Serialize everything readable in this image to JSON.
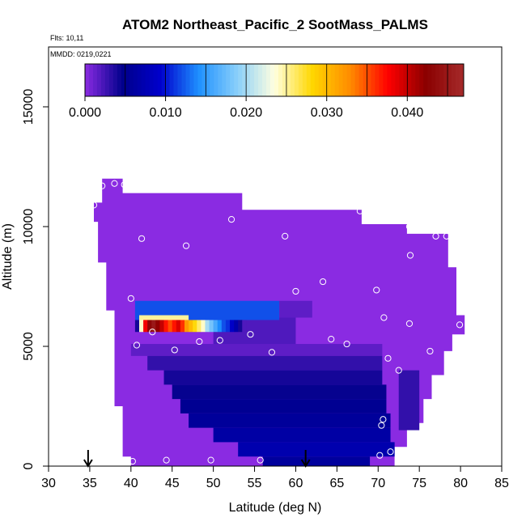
{
  "header": {
    "title": "ATOM2 Northeast_Pacific_2 SootMass_PALMS",
    "flights": "Flts: 10,11",
    "dates": "MMDD: 0219,0221"
  },
  "colors": {
    "background_fill": "#8a2be2",
    "colorbar": [
      "#8a2be2",
      "#00008b",
      "#0000cd",
      "#1e90ff",
      "#87cefa",
      "#ffffe0",
      "#ffd700",
      "#ff8c00",
      "#ff0000",
      "#8b0000",
      "#a52a2a"
    ]
  },
  "chart_data": {
    "type": "heatmap",
    "title": "ATOM2 Northeast_Pacific_2 SootMass_PALMS",
    "xlabel": "Latitude (deg N)",
    "ylabel": "Altitude (m)",
    "xlim": [
      30,
      85
    ],
    "ylim": [
      0,
      17500
    ],
    "xticks": [
      "30",
      "35",
      "40",
      "45",
      "50",
      "55",
      "60",
      "65",
      "70",
      "75",
      "80",
      "85"
    ],
    "yticks": [
      "0",
      "5000",
      "10000",
      "15000"
    ],
    "colorbar": {
      "range": [
        0,
        0.047
      ],
      "ticks": [
        "0.000",
        "0.010",
        "0.020",
        "0.030",
        "0.040"
      ],
      "tick_values": [
        0,
        0.01,
        0.02,
        0.03,
        0.04
      ],
      "boundaries": [
        0,
        0.005,
        0.01,
        0.015,
        0.02,
        0.025,
        0.03,
        0.035,
        0.04,
        0.045,
        0.047
      ]
    },
    "domain_outline": [
      [
        36.5,
        12000
      ],
      [
        39,
        12000
      ],
      [
        39,
        11400
      ],
      [
        53.5,
        11400
      ],
      [
        53.5,
        10700
      ],
      [
        68,
        10700
      ],
      [
        68,
        10100
      ],
      [
        73.5,
        10100
      ],
      [
        73.5,
        9700
      ],
      [
        78.5,
        9700
      ],
      [
        78.5,
        8300
      ],
      [
        79.5,
        8300
      ],
      [
        79.5,
        6300
      ],
      [
        80.5,
        6300
      ],
      [
        80.5,
        5500
      ],
      [
        79,
        5500
      ],
      [
        79,
        4800
      ],
      [
        78,
        4800
      ],
      [
        78,
        3800
      ],
      [
        76.5,
        3800
      ],
      [
        76.5,
        2800
      ],
      [
        75.5,
        2800
      ],
      [
        75.5,
        1800
      ],
      [
        73.5,
        1800
      ],
      [
        73.5,
        800
      ],
      [
        72,
        800
      ],
      [
        72,
        0
      ],
      [
        40,
        0
      ],
      [
        40,
        400
      ],
      [
        39,
        400
      ],
      [
        39,
        2500
      ],
      [
        38,
        2500
      ],
      [
        38,
        5000
      ],
      [
        38,
        6500
      ],
      [
        37,
        6500
      ],
      [
        37,
        8500
      ],
      [
        36,
        8500
      ],
      [
        36,
        10200
      ],
      [
        35.5,
        10200
      ],
      [
        35.5,
        11000
      ],
      [
        36.5,
        11000
      ]
    ],
    "regions": [
      {
        "lat": [
          40,
          70.5
        ],
        "alt": [
          4600,
          5100
        ],
        "value": 0.0015
      },
      {
        "lat": [
          42,
          70.5
        ],
        "alt": [
          4000,
          4600
        ],
        "value": 0.003
      },
      {
        "lat": [
          44,
          70.5
        ],
        "alt": [
          3400,
          4000
        ],
        "value": 0.004
      },
      {
        "lat": [
          45,
          71
        ],
        "alt": [
          2800,
          3400
        ],
        "value": 0.0045
      },
      {
        "lat": [
          46,
          71
        ],
        "alt": [
          2200,
          2800
        ],
        "value": 0.0052
      },
      {
        "lat": [
          47,
          71.5
        ],
        "alt": [
          1600,
          2200
        ],
        "value": 0.0058
      },
      {
        "lat": [
          50,
          71.5
        ],
        "alt": [
          1000,
          1600
        ],
        "value": 0.0065
      },
      {
        "lat": [
          53,
          72
        ],
        "alt": [
          400,
          1000
        ],
        "value": 0.0072
      },
      {
        "lat": [
          56,
          69
        ],
        "alt": [
          0,
          400
        ],
        "value": 0.006
      },
      {
        "lat": [
          72.5,
          75
        ],
        "alt": [
          1500,
          4000
        ],
        "value": 0.003
      },
      {
        "lat": [
          50,
          60
        ],
        "alt": [
          5100,
          6200
        ],
        "value": 0.002
      },
      {
        "lat": [
          58,
          62
        ],
        "alt": [
          6200,
          6900
        ],
        "value": 0.0015
      },
      {
        "lat": [
          40.5,
          58
        ],
        "alt": [
          6100,
          6900
        ],
        "value": 0.012
      },
      {
        "lat": [
          41,
          47
        ],
        "alt": [
          5900,
          6300
        ],
        "value": 0.025
      }
    ],
    "hot_band": {
      "alt": [
        5600,
        6100
      ],
      "cells": [
        {
          "lat": 40.5,
          "value": 0.004
        },
        {
          "lat": 41.0,
          "value": 0.024
        },
        {
          "lat": 41.5,
          "value": 0.038
        },
        {
          "lat": 42.0,
          "value": 0.043
        },
        {
          "lat": 42.5,
          "value": 0.045
        },
        {
          "lat": 43.0,
          "value": 0.042
        },
        {
          "lat": 43.5,
          "value": 0.04
        },
        {
          "lat": 44.0,
          "value": 0.037
        },
        {
          "lat": 44.5,
          "value": 0.035
        },
        {
          "lat": 45.0,
          "value": 0.037
        },
        {
          "lat": 45.5,
          "value": 0.039
        },
        {
          "lat": 46.0,
          "value": 0.036
        },
        {
          "lat": 46.5,
          "value": 0.032
        },
        {
          "lat": 47.0,
          "value": 0.03
        },
        {
          "lat": 47.5,
          "value": 0.028
        },
        {
          "lat": 48.0,
          "value": 0.026
        },
        {
          "lat": 48.5,
          "value": 0.024
        },
        {
          "lat": 49.0,
          "value": 0.02
        },
        {
          "lat": 49.5,
          "value": 0.018
        },
        {
          "lat": 50.0,
          "value": 0.016
        },
        {
          "lat": 50.5,
          "value": 0.014
        },
        {
          "lat": 51.0,
          "value": 0.012
        },
        {
          "lat": 51.5,
          "value": 0.011
        },
        {
          "lat": 52.0,
          "value": 0.009
        },
        {
          "lat": 52.5,
          "value": 0.007
        },
        {
          "lat": 53.0,
          "value": 0.004
        },
        {
          "lat": 53.5,
          "value": 0.002
        }
      ]
    },
    "points": [
      [
        36.5,
        11700
      ],
      [
        38,
        11800
      ],
      [
        39.2,
        11750
      ],
      [
        35.5,
        10900
      ],
      [
        52.2,
        10300
      ],
      [
        67.8,
        10650
      ],
      [
        73.8,
        10000
      ],
      [
        41.3,
        9500
      ],
      [
        58.7,
        9600
      ],
      [
        77,
        9600
      ],
      [
        46.7,
        9200
      ],
      [
        78.3,
        9600
      ],
      [
        73.9,
        8800
      ],
      [
        63.3,
        7700
      ],
      [
        60,
        7300
      ],
      [
        69.8,
        7350
      ],
      [
        40,
        7000
      ],
      [
        70.7,
        6200
      ],
      [
        79.9,
        5900
      ],
      [
        73.8,
        5950
      ],
      [
        42.6,
        5600
      ],
      [
        54.5,
        5500
      ],
      [
        64.3,
        5300
      ],
      [
        50.8,
        5250
      ],
      [
        48.3,
        5200
      ],
      [
        66.2,
        5100
      ],
      [
        40.7,
        5050
      ],
      [
        45.3,
        4850
      ],
      [
        57.1,
        4750
      ],
      [
        76.3,
        4800
      ],
      [
        71.2,
        4500
      ],
      [
        72.5,
        4000
      ],
      [
        70.6,
        1950
      ],
      [
        70.4,
        1700
      ],
      [
        71.5,
        600
      ],
      [
        70.2,
        450
      ],
      [
        40.2,
        200
      ],
      [
        44.3,
        250
      ],
      [
        49.7,
        250
      ],
      [
        55.7,
        250
      ]
    ],
    "markers": [
      34.8,
      61.2
    ]
  }
}
